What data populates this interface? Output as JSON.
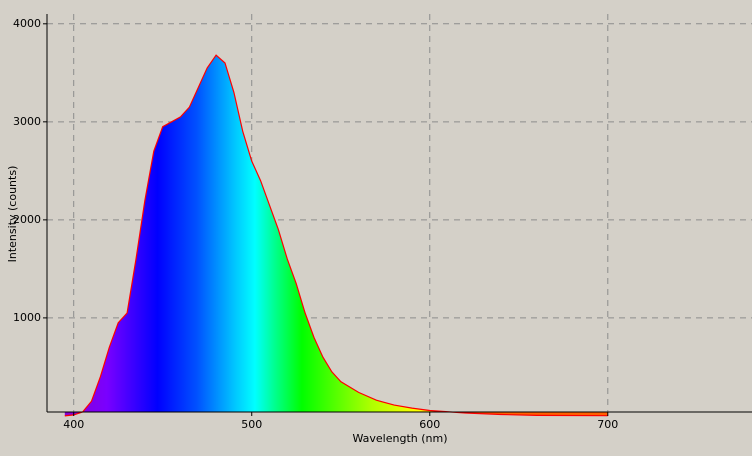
{
  "chart_data": {
    "type": "area",
    "x_label": "Wavelength (nm)",
    "y_label": "Intensity (counts)",
    "x": [
      395,
      400,
      405,
      410,
      415,
      420,
      425,
      430,
      435,
      440,
      445,
      450,
      455,
      460,
      465,
      470,
      475,
      480,
      485,
      490,
      495,
      500,
      505,
      510,
      515,
      520,
      525,
      530,
      535,
      540,
      545,
      550,
      560,
      570,
      580,
      590,
      600,
      620,
      640,
      660,
      700
    ],
    "values": [
      0,
      10,
      40,
      150,
      400,
      700,
      950,
      1050,
      1600,
      2200,
      2700,
      2950,
      3000,
      3050,
      3150,
      3350,
      3550,
      3680,
      3600,
      3300,
      2900,
      2600,
      2400,
      2150,
      1900,
      1600,
      1350,
      1050,
      800,
      600,
      450,
      350,
      240,
      160,
      110,
      80,
      55,
      30,
      15,
      5,
      2
    ],
    "line_color": "#ff0000",
    "xlim": [
      385,
      781
    ],
    "ylim": [
      40,
      4100
    ],
    "xticks": [
      400,
      500,
      600,
      700
    ],
    "yticks": [
      1000,
      2000,
      3000,
      4000
    ],
    "grid": true
  }
}
